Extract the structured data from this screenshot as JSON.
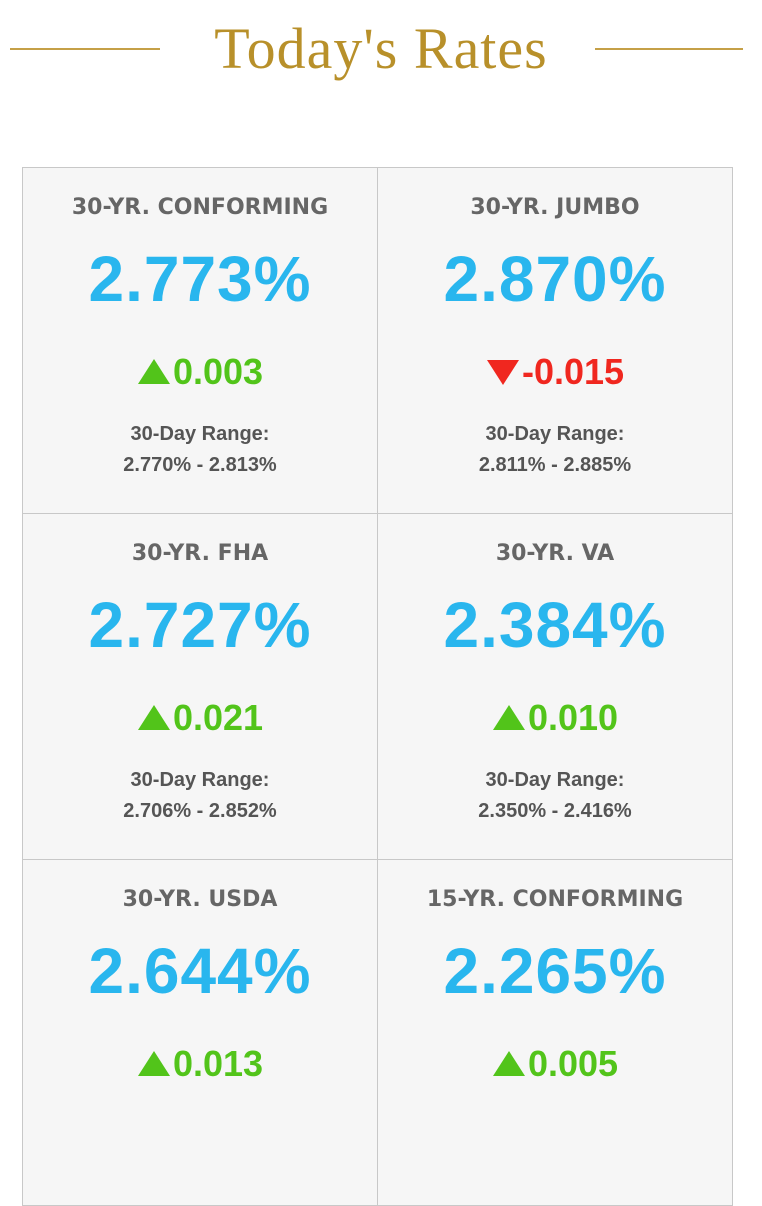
{
  "header": {
    "title": "Today's Rates"
  },
  "range_label": "30-Day Range:",
  "cells": [
    {
      "label": "30-YR. CONFORMING",
      "rate": "2.773%",
      "change": "0.003",
      "range": "2.770% - 2.813%"
    },
    {
      "label": "30-YR. JUMBO",
      "rate": "2.870%",
      "change": "-0.015",
      "range": "2.811% - 2.885%"
    },
    {
      "label": "30-YR. FHA",
      "rate": "2.727%",
      "change": "0.021",
      "range": "2.706% - 2.852%"
    },
    {
      "label": "30-YR. VA",
      "rate": "2.384%",
      "change": "0.010",
      "range": "2.350% - 2.416%"
    },
    {
      "label": "30-YR. USDA",
      "rate": "2.644%",
      "change": "0.013"
    },
    {
      "label": "15-YR. CONFORMING",
      "rate": "2.265%",
      "change": "0.005"
    }
  ]
}
